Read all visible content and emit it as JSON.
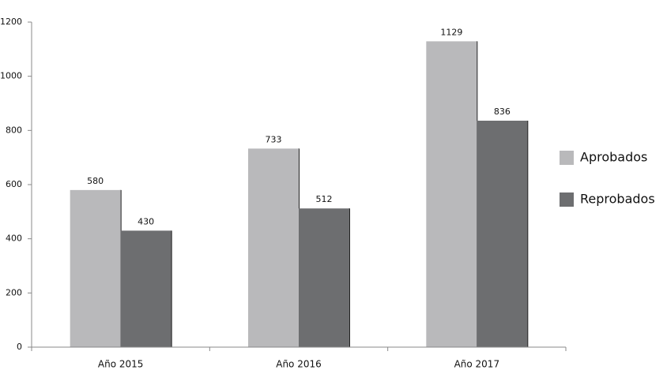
{
  "chart_data": {
    "type": "bar",
    "categories": [
      "Año 2015",
      "Año 2016",
      "Año 2017"
    ],
    "series": [
      {
        "name": "Aprobados",
        "color": "#b9b9bb",
        "values": [
          580,
          733,
          1129
        ]
      },
      {
        "name": "Reprobados",
        "color": "#6d6e70",
        "values": [
          430,
          512,
          836
        ]
      }
    ],
    "ylim": [
      0,
      1200
    ],
    "yticks": [
      0,
      200,
      400,
      600,
      800,
      1000,
      1200
    ],
    "grid": false,
    "legend": "right"
  }
}
